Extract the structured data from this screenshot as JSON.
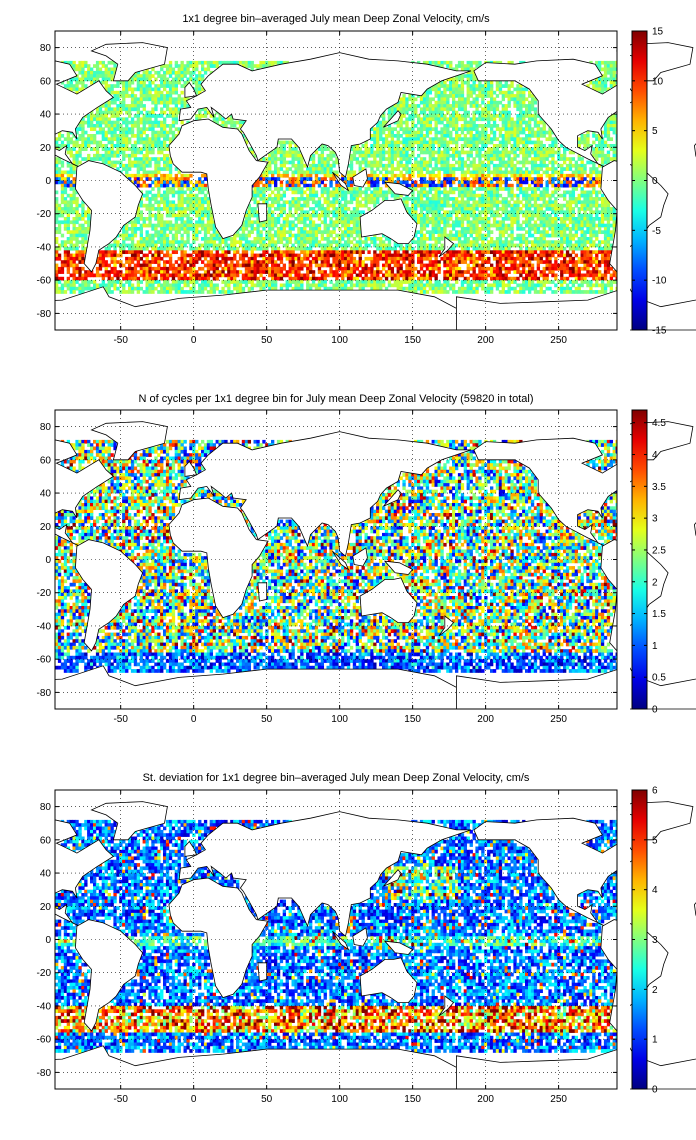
{
  "chart_data": [
    {
      "type": "heatmap",
      "title": "1x1 degree bin–averaged July mean Deep Zonal Velocity, cm/s",
      "xlabel": "",
      "ylabel": "",
      "xlim": [
        -95,
        290
      ],
      "ylim": [
        -90,
        90
      ],
      "x_ticks": [
        -50,
        0,
        50,
        100,
        150,
        200,
        250
      ],
      "y_ticks": [
        80,
        60,
        40,
        20,
        0,
        -20,
        -40,
        -60,
        -80
      ],
      "grid": true,
      "colormap": "jet",
      "color_range": [
        -15,
        15
      ],
      "colorbar_ticks": [
        15,
        10,
        5,
        0,
        -5,
        -10,
        -15
      ],
      "pattern": "velocity"
    },
    {
      "type": "heatmap",
      "title": "N of cycles per 1x1 degree bin for July mean Deep Zonal Velocity (59820 in total)",
      "xlabel": "",
      "ylabel": "",
      "xlim": [
        -95,
        290
      ],
      "ylim": [
        -90,
        90
      ],
      "x_ticks": [
        -50,
        0,
        50,
        100,
        150,
        200,
        250
      ],
      "y_ticks": [
        80,
        60,
        40,
        20,
        0,
        -20,
        -40,
        -60,
        -80
      ],
      "grid": true,
      "colormap": "jet",
      "color_range": [
        0,
        4.7
      ],
      "colorbar_ticks": [
        4.5,
        4,
        3.5,
        3,
        2.5,
        2,
        1.5,
        1,
        0.5,
        0
      ],
      "pattern": "count"
    },
    {
      "type": "heatmap",
      "title": "St. deviation for 1x1 degree bin–averaged July mean Deep Zonal Velocity, cm/s",
      "xlabel": "",
      "ylabel": "",
      "xlim": [
        -95,
        290
      ],
      "ylim": [
        -90,
        90
      ],
      "x_ticks": [
        -50,
        0,
        50,
        100,
        150,
        200,
        250
      ],
      "y_ticks": [
        80,
        60,
        40,
        20,
        0,
        -20,
        -40,
        -60,
        -80
      ],
      "grid": true,
      "colormap": "jet",
      "color_range": [
        0,
        6
      ],
      "colorbar_ticks": [
        6,
        5,
        4,
        3,
        2,
        1,
        0
      ],
      "pattern": "stdev"
    }
  ]
}
